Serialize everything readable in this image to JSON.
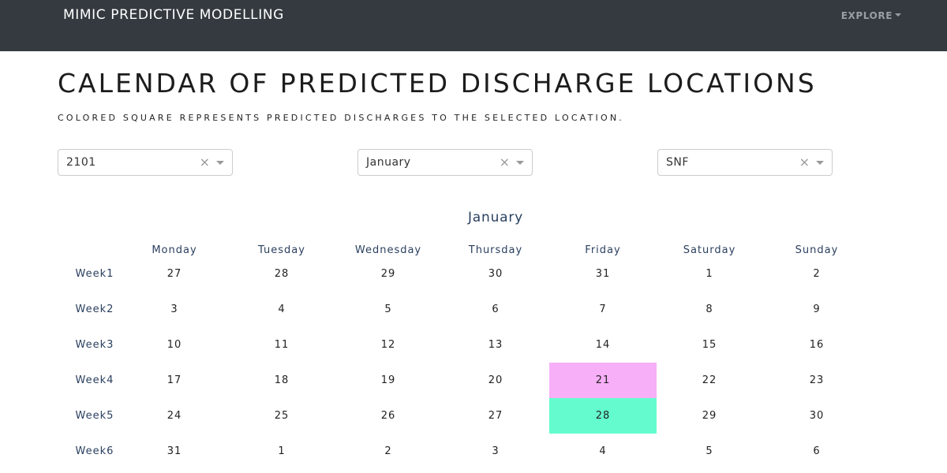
{
  "navbar": {
    "brand": "MIMIC PREDICTIVE MODELLING",
    "explore_label": "EXPLORE"
  },
  "page": {
    "title": "CALENDAR OF PREDICTED DISCHARGE LOCATIONS",
    "subtitle": "COLORED SQUARE REPRESENTS PREDICTED DISCHARGES TO THE SELECTED LOCATION."
  },
  "filters": {
    "year": "2101",
    "month": "January",
    "location": "SNF",
    "clear_glyph": "×"
  },
  "calendar": {
    "month_title": "January",
    "days": [
      "Monday",
      "Tuesday",
      "Wednesday",
      "Thursday",
      "Friday",
      "Saturday",
      "Sunday"
    ],
    "weeks": [
      {
        "label": "Week1",
        "days": [
          "27",
          "28",
          "29",
          "30",
          "31",
          "1",
          "2"
        ]
      },
      {
        "label": "Week2",
        "days": [
          "3",
          "4",
          "5",
          "6",
          "7",
          "8",
          "9"
        ]
      },
      {
        "label": "Week3",
        "days": [
          "10",
          "11",
          "12",
          "13",
          "14",
          "15",
          "16"
        ]
      },
      {
        "label": "Week4",
        "days": [
          "17",
          "18",
          "19",
          "20",
          "21",
          "22",
          "23"
        ]
      },
      {
        "label": "Week5",
        "days": [
          "24",
          "25",
          "26",
          "27",
          "28",
          "29",
          "30"
        ]
      },
      {
        "label": "Week6",
        "days": [
          "31",
          "1",
          "2",
          "3",
          "4",
          "5",
          "6"
        ]
      }
    ],
    "highlights": [
      {
        "week": 3,
        "day": 4,
        "color": "#f7aff7"
      },
      {
        "week": 4,
        "day": 4,
        "color": "#64fcce"
      }
    ]
  }
}
